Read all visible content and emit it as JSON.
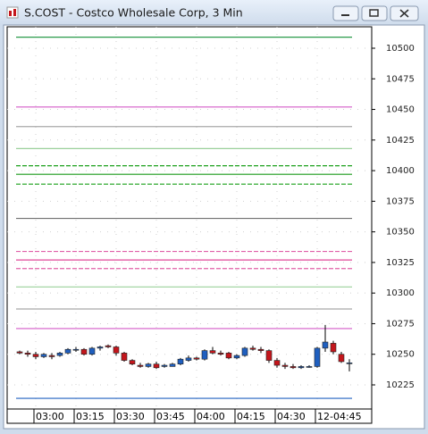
{
  "window_title": "S.COST - Costco Wholesale Corp, 3 Min",
  "chart_data": {
    "type": "candlestick",
    "categories": [
      null,
      null,
      "03:00",
      null,
      null,
      null,
      null,
      "03:15",
      null,
      null,
      null,
      null,
      "03:30",
      null,
      null,
      null,
      null,
      "03:45",
      null,
      null,
      null,
      null,
      "04:00",
      null,
      null,
      null,
      null,
      "04:15",
      null,
      null,
      null,
      null,
      "04:30",
      null,
      null,
      null,
      null,
      "12-04:45",
      null,
      null,
      null,
      null
    ],
    "open": [
      10252,
      10251,
      10250,
      10248,
      10249,
      10249,
      10251,
      10254,
      10254,
      10250,
      10255,
      10257,
      10256,
      10251,
      10245,
      10241,
      10240,
      10242,
      10240,
      10240,
      10242,
      10245,
      10247,
      10246,
      10253,
      10251,
      10251,
      10247,
      10249,
      10255,
      10254,
      10253,
      10245,
      10241,
      10240,
      10239,
      10240,
      10240,
      10255,
      10259,
      10250,
      10243
    ],
    "high": [
      10253,
      10253,
      10252,
      10251,
      10251,
      10252,
      10255,
      10256,
      10255,
      10256,
      10257,
      10258,
      10257,
      10252,
      10246,
      10243,
      10243,
      10244,
      10242,
      10243,
      10247,
      10249,
      10248,
      10254,
      10256,
      10253,
      10252,
      10250,
      10256,
      10257,
      10256,
      10254,
      10247,
      10243,
      10242,
      10241,
      10241,
      10256,
      10274,
      10261,
      10252,
      10246
    ],
    "low": [
      10250,
      10248,
      10246,
      10247,
      10246,
      10248,
      10250,
      10252,
      10249,
      10249,
      10253,
      10255,
      10249,
      10244,
      10241,
      10239,
      10239,
      10238,
      10239,
      10240,
      10241,
      10244,
      10245,
      10245,
      10250,
      10249,
      10246,
      10246,
      10248,
      10253,
      10251,
      10243,
      10239,
      10238,
      10238,
      10238,
      10239,
      10239,
      10252,
      10250,
      10243,
      10236
    ],
    "close": [
      10251,
      10250,
      10248,
      10250,
      10248,
      10251,
      10254,
      10254,
      10250,
      10255,
      10256,
      10256,
      10251,
      10245,
      10242,
      10240,
      10242,
      10239,
      10241,
      10242,
      10246,
      10247,
      10246,
      10253,
      10251,
      10250,
      10247,
      10249,
      10255,
      10254,
      10253,
      10245,
      10241,
      10240,
      10239,
      10240,
      10240,
      10255,
      10260,
      10252,
      10244,
      10243
    ],
    "up_color": "#1f5fbf",
    "down_color": "#c4161c",
    "levels": [
      {
        "value": 10509,
        "color": "#2a9a4a",
        "dash": false
      },
      {
        "value": 10452,
        "color": "#d45bc8",
        "dash": false
      },
      {
        "value": 10436,
        "color": "#a8a8a8",
        "dash": false
      },
      {
        "value": 10418,
        "color": "#9ad09a",
        "dash": false
      },
      {
        "value": 10404,
        "color": "#1aa01a",
        "dash": true
      },
      {
        "value": 10397,
        "color": "#1a9a1a",
        "dash": false
      },
      {
        "value": 10389,
        "color": "#1aa01a",
        "dash": true
      },
      {
        "value": 10361,
        "color": "#707070",
        "dash": false
      },
      {
        "value": 10334,
        "color": "#e060a8",
        "dash": true
      },
      {
        "value": 10327,
        "color": "#e04898",
        "dash": false
      },
      {
        "value": 10320,
        "color": "#e060a8",
        "dash": true
      },
      {
        "value": 10305,
        "color": "#9ad09a",
        "dash": false
      },
      {
        "value": 10287,
        "color": "#a8a8a8",
        "dash": false
      },
      {
        "value": 10271,
        "color": "#d45bc8",
        "dash": false
      },
      {
        "value": 10214,
        "color": "#2060c0",
        "dash": false
      }
    ],
    "ylim": [
      10205.3,
      10517.5
    ],
    "yticks": [
      10225,
      10250,
      10275,
      10300,
      10325,
      10350,
      10375,
      10400,
      10425,
      10450,
      10475,
      10500
    ],
    "grid": true
  }
}
